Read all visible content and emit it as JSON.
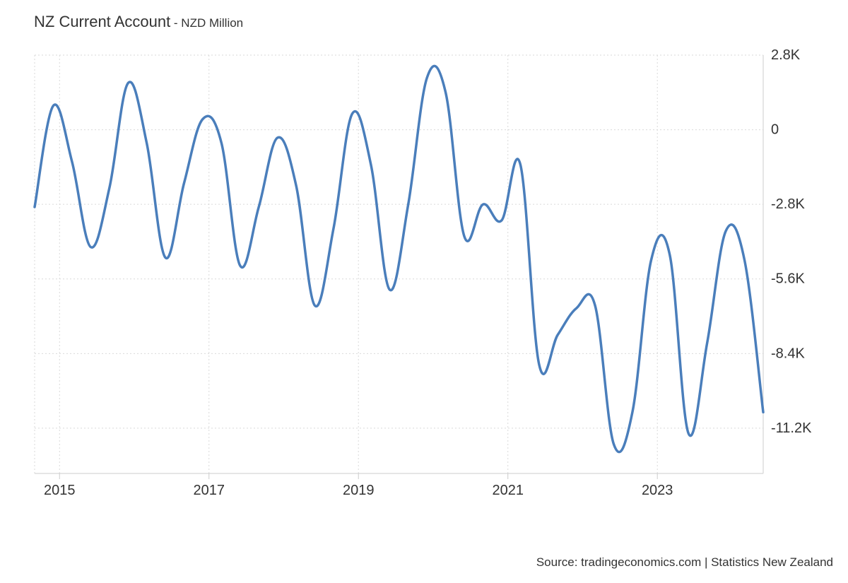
{
  "header": {
    "title": "NZ Current Account",
    "subtitle": " - NZD Million"
  },
  "source": "Source: tradingeconomics.com | Statistics New Zealand",
  "chart_data": {
    "type": "line",
    "title": "NZ Current Account",
    "subtitle": "NZD Million",
    "xlabel": "",
    "ylabel": "",
    "x_ticks": [
      "2015",
      "2017",
      "2019",
      "2021",
      "2023"
    ],
    "y_ticks": [
      "2.8K",
      "0",
      "-2.8K",
      "-5.6K",
      "-8.4K",
      "-11.2K"
    ],
    "ylim": [
      -12900,
      2800
    ],
    "xlim": [
      "2014-09",
      "2024-06"
    ],
    "grid": true,
    "legend": "none",
    "series": [
      {
        "color": "#4a7ebb",
        "points": [
          {
            "x": "2014-09",
            "y": -2900
          },
          {
            "x": "2014-12",
            "y": 900
          },
          {
            "x": "2015-03",
            "y": -1200
          },
          {
            "x": "2015-06",
            "y": -4400
          },
          {
            "x": "2015-09",
            "y": -2200
          },
          {
            "x": "2015-12",
            "y": 1750
          },
          {
            "x": "2016-03",
            "y": -500
          },
          {
            "x": "2016-06",
            "y": -4800
          },
          {
            "x": "2016-09",
            "y": -2000
          },
          {
            "x": "2016-12",
            "y": 400
          },
          {
            "x": "2017-03",
            "y": -500
          },
          {
            "x": "2017-06",
            "y": -5100
          },
          {
            "x": "2017-09",
            "y": -2900
          },
          {
            "x": "2017-12",
            "y": -300
          },
          {
            "x": "2018-03",
            "y": -2100
          },
          {
            "x": "2018-06",
            "y": -6600
          },
          {
            "x": "2018-09",
            "y": -3700
          },
          {
            "x": "2018-12",
            "y": 600
          },
          {
            "x": "2019-03",
            "y": -1300
          },
          {
            "x": "2019-06",
            "y": -6000
          },
          {
            "x": "2019-09",
            "y": -2800
          },
          {
            "x": "2019-12",
            "y": 1950
          },
          {
            "x": "2020-03",
            "y": 1400
          },
          {
            "x": "2020-06",
            "y": -4000
          },
          {
            "x": "2020-09",
            "y": -2800
          },
          {
            "x": "2020-12",
            "y": -3400
          },
          {
            "x": "2021-03",
            "y": -1300
          },
          {
            "x": "2021-06",
            "y": -8800
          },
          {
            "x": "2021-09",
            "y": -7700
          },
          {
            "x": "2021-12",
            "y": -6700
          },
          {
            "x": "2022-03",
            "y": -6600
          },
          {
            "x": "2022-06",
            "y": -11800
          },
          {
            "x": "2022-09",
            "y": -10600
          },
          {
            "x": "2022-12",
            "y": -4900
          },
          {
            "x": "2023-03",
            "y": -4700
          },
          {
            "x": "2023-06",
            "y": -11400
          },
          {
            "x": "2023-09",
            "y": -8000
          },
          {
            "x": "2023-12",
            "y": -3800
          },
          {
            "x": "2024-03",
            "y": -4900
          },
          {
            "x": "2024-06",
            "y": -10600
          }
        ]
      }
    ]
  }
}
